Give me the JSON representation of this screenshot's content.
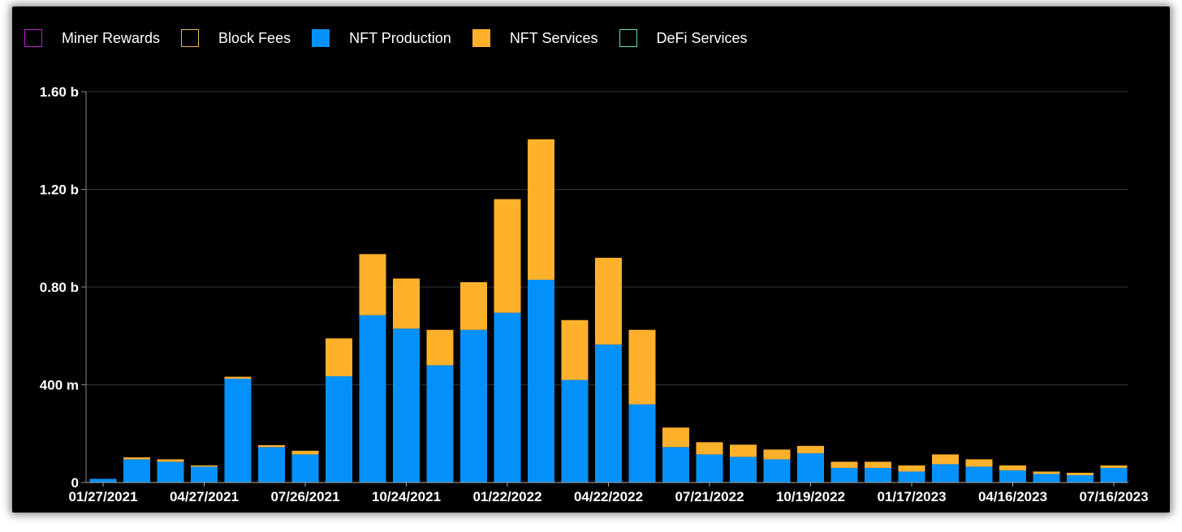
{
  "legend": [
    {
      "label": "Miner Rewards",
      "color": "#c21ad6",
      "style": "outline"
    },
    {
      "label": "Block Fees",
      "color": "#e6b84a",
      "style": "outline"
    },
    {
      "label": "NFT Production",
      "color": "#0491fb",
      "style": "filled"
    },
    {
      "label": "NFT Services",
      "color": "#ffb12b",
      "style": "filled"
    },
    {
      "label": "DeFi Services",
      "color": "#5ee0c0",
      "style": "outline"
    }
  ],
  "chart_data": {
    "type": "bar",
    "stacked": true,
    "grid": true,
    "ylim": [
      0,
      1600000000
    ],
    "yticks": [
      {
        "value": 1600000000,
        "label": "1.60 b"
      },
      {
        "value": 1200000000,
        "label": "1.20 b"
      },
      {
        "value": 800000000,
        "label": "0.80 b"
      },
      {
        "value": 400000000,
        "label": "400 m"
      },
      {
        "value": 0,
        "label": "0"
      }
    ],
    "xtick_labels": [
      "01/27/2021",
      "04/27/2021",
      "07/26/2021",
      "10/24/2021",
      "01/22/2022",
      "04/22/2022",
      "07/21/2022",
      "10/19/2022",
      "01/17/2023",
      "04/16/2023",
      "07/16/2023"
    ],
    "xtick_every": 3,
    "bar_count": 31,
    "series": [
      {
        "name": "NFT Production",
        "color": "#0491fb",
        "values": [
          15000000,
          95000000,
          85000000,
          65000000,
          425000000,
          145000000,
          115000000,
          435000000,
          685000000,
          630000000,
          480000000,
          625000000,
          695000000,
          830000000,
          420000000,
          565000000,
          320000000,
          145000000,
          115000000,
          105000000,
          95000000,
          120000000,
          60000000,
          60000000,
          45000000,
          75000000,
          65000000,
          50000000,
          35000000,
          30000000,
          60000000
        ]
      },
      {
        "name": "NFT Services",
        "color": "#ffb12b",
        "values": [
          0,
          8000000,
          10000000,
          5000000,
          8000000,
          8000000,
          15000000,
          155000000,
          250000000,
          205000000,
          145000000,
          195000000,
          465000000,
          575000000,
          245000000,
          355000000,
          305000000,
          80000000,
          50000000,
          50000000,
          40000000,
          30000000,
          25000000,
          25000000,
          25000000,
          40000000,
          30000000,
          20000000,
          10000000,
          10000000,
          10000000
        ]
      }
    ]
  }
}
